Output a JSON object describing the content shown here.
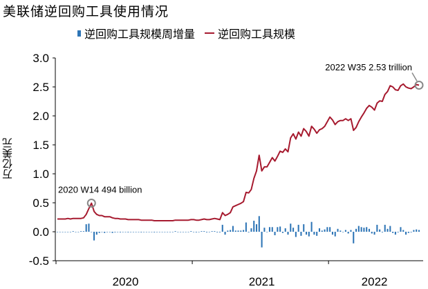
{
  "chart_data": {
    "type": "bar+line",
    "title": "美联储逆回购工具使用情况",
    "ylabel": "万亿美元",
    "ylim": [
      -0.5,
      3.0
    ],
    "yticks": [
      "3.0",
      "2.5",
      "2.0",
      "1.5",
      "1.0",
      "0.5",
      "0.0",
      "-0.5"
    ],
    "xticks": [
      "2020",
      "2021",
      "2022"
    ],
    "legend": [
      {
        "name": "逆回购工具规模周增量",
        "type": "bar",
        "color": "#2e75b6"
      },
      {
        "name": "逆回购工具规模",
        "type": "line",
        "color": "#a6192e"
      }
    ],
    "annotations": [
      {
        "text": "2020 W14 494 billion",
        "x": 14,
        "y": 0.494
      },
      {
        "text": "2022 W35 2.53 trillion",
        "x": 139,
        "y": 2.53
      }
    ],
    "x_weeks": [
      1,
      2,
      3,
      4,
      5,
      6,
      7,
      8,
      9,
      10,
      11,
      12,
      13,
      14,
      15,
      16,
      17,
      18,
      19,
      20,
      21,
      22,
      23,
      24,
      25,
      26,
      27,
      28,
      29,
      30,
      31,
      32,
      33,
      34,
      35,
      36,
      37,
      38,
      39,
      40,
      41,
      42,
      43,
      44,
      45,
      46,
      47,
      48,
      49,
      50,
      51,
      52,
      53,
      54,
      55,
      56,
      57,
      58,
      59,
      60,
      61,
      62,
      63,
      64,
      65,
      66,
      67,
      68,
      69,
      70,
      71,
      72,
      73,
      74,
      75,
      76,
      77,
      78,
      79,
      80,
      81,
      82,
      83,
      84,
      85,
      86,
      87,
      88,
      89,
      90,
      91,
      92,
      93,
      94,
      95,
      96,
      97,
      98,
      99,
      100,
      101,
      102,
      103,
      104,
      105,
      106,
      107,
      108,
      109,
      110,
      111,
      112,
      113,
      114,
      115,
      116,
      117,
      118,
      119,
      120,
      121,
      122,
      123,
      124,
      125,
      126,
      127,
      128,
      129,
      130,
      131,
      132,
      133,
      134,
      135,
      136,
      137,
      138,
      139
    ],
    "series": [
      {
        "name": "逆回购工具规模",
        "values": [
          0.22,
          0.22,
          0.22,
          0.22,
          0.23,
          0.22,
          0.23,
          0.23,
          0.23,
          0.23,
          0.24,
          0.3,
          0.4,
          0.494,
          0.35,
          0.3,
          0.28,
          0.28,
          0.26,
          0.26,
          0.26,
          0.24,
          0.23,
          0.23,
          0.22,
          0.22,
          0.22,
          0.21,
          0.21,
          0.21,
          0.21,
          0.21,
          0.2,
          0.2,
          0.2,
          0.2,
          0.2,
          0.19,
          0.19,
          0.19,
          0.19,
          0.19,
          0.19,
          0.19,
          0.19,
          0.2,
          0.2,
          0.2,
          0.2,
          0.2,
          0.2,
          0.21,
          0.21,
          0.2,
          0.2,
          0.21,
          0.22,
          0.21,
          0.21,
          0.22,
          0.23,
          0.22,
          0.21,
          0.33,
          0.28,
          0.3,
          0.33,
          0.43,
          0.45,
          0.47,
          0.49,
          0.52,
          0.68,
          0.67,
          0.73,
          0.92,
          1.05,
          1.32,
          1.05,
          1.12,
          1.12,
          1.2,
          1.28,
          1.22,
          1.3,
          1.39,
          1.37,
          1.43,
          1.38,
          1.62,
          1.69,
          1.6,
          1.72,
          1.65,
          1.78,
          1.73,
          1.65,
          1.82,
          1.77,
          1.7,
          1.76,
          1.78,
          1.82,
          1.9,
          1.98,
          1.93,
          1.85,
          1.9,
          1.92,
          1.92,
          1.95,
          1.92,
          1.95,
          1.75,
          1.8,
          1.9,
          1.98,
          2.05,
          2.13,
          2.18,
          2.15,
          2.1,
          2.22,
          2.26,
          2.25,
          2.37,
          2.42,
          2.52,
          2.5,
          2.45,
          2.44,
          2.52,
          2.55,
          2.5,
          2.48,
          2.47,
          2.5,
          2.54,
          2.53
        ]
      },
      {
        "name": "逆回购工具规模周增量",
        "values": [
          0.0,
          0.0,
          0.0,
          0.0,
          0.0,
          0.0,
          0.01,
          0.0,
          0.0,
          0.01,
          0.01,
          0.13,
          0.14,
          0.0,
          -0.15,
          -0.05,
          -0.02,
          0.0,
          -0.02,
          0.0,
          0.0,
          -0.02,
          -0.01,
          0.0,
          -0.01,
          0.0,
          0.0,
          -0.01,
          0.0,
          0.0,
          0.0,
          0.0,
          -0.01,
          0.0,
          0.0,
          0.0,
          0.0,
          -0.01,
          0.0,
          0.0,
          0.0,
          0.0,
          0.0,
          0.0,
          0.0,
          0.01,
          0.0,
          0.0,
          0.0,
          0.0,
          0.0,
          0.01,
          0.0,
          -0.01,
          0.0,
          0.01,
          0.01,
          -0.01,
          0.0,
          0.01,
          0.01,
          -0.01,
          -0.01,
          0.12,
          -0.05,
          0.02,
          0.03,
          0.1,
          0.02,
          0.02,
          0.02,
          0.03,
          0.16,
          -0.01,
          0.06,
          0.19,
          0.13,
          0.27,
          -0.27,
          0.07,
          0.0,
          0.08,
          0.08,
          -0.06,
          0.08,
          0.09,
          -0.02,
          0.06,
          -0.05,
          0.14,
          0.07,
          -0.09,
          0.12,
          -0.07,
          0.13,
          -0.05,
          -0.08,
          0.17,
          -0.05,
          -0.07,
          0.06,
          0.02,
          0.04,
          0.08,
          0.08,
          -0.05,
          -0.08,
          0.05,
          0.02,
          0.0,
          0.03,
          -0.03,
          0.03,
          -0.2,
          0.05,
          0.1,
          0.08,
          0.07,
          0.08,
          0.05,
          -0.03,
          -0.05,
          0.12,
          0.04,
          -0.01,
          0.12,
          0.05,
          0.1,
          -0.02,
          -0.05,
          -0.01,
          0.08,
          0.03,
          -0.05,
          -0.02,
          -0.01,
          0.03,
          0.04,
          0.03
        ]
      }
    ]
  }
}
